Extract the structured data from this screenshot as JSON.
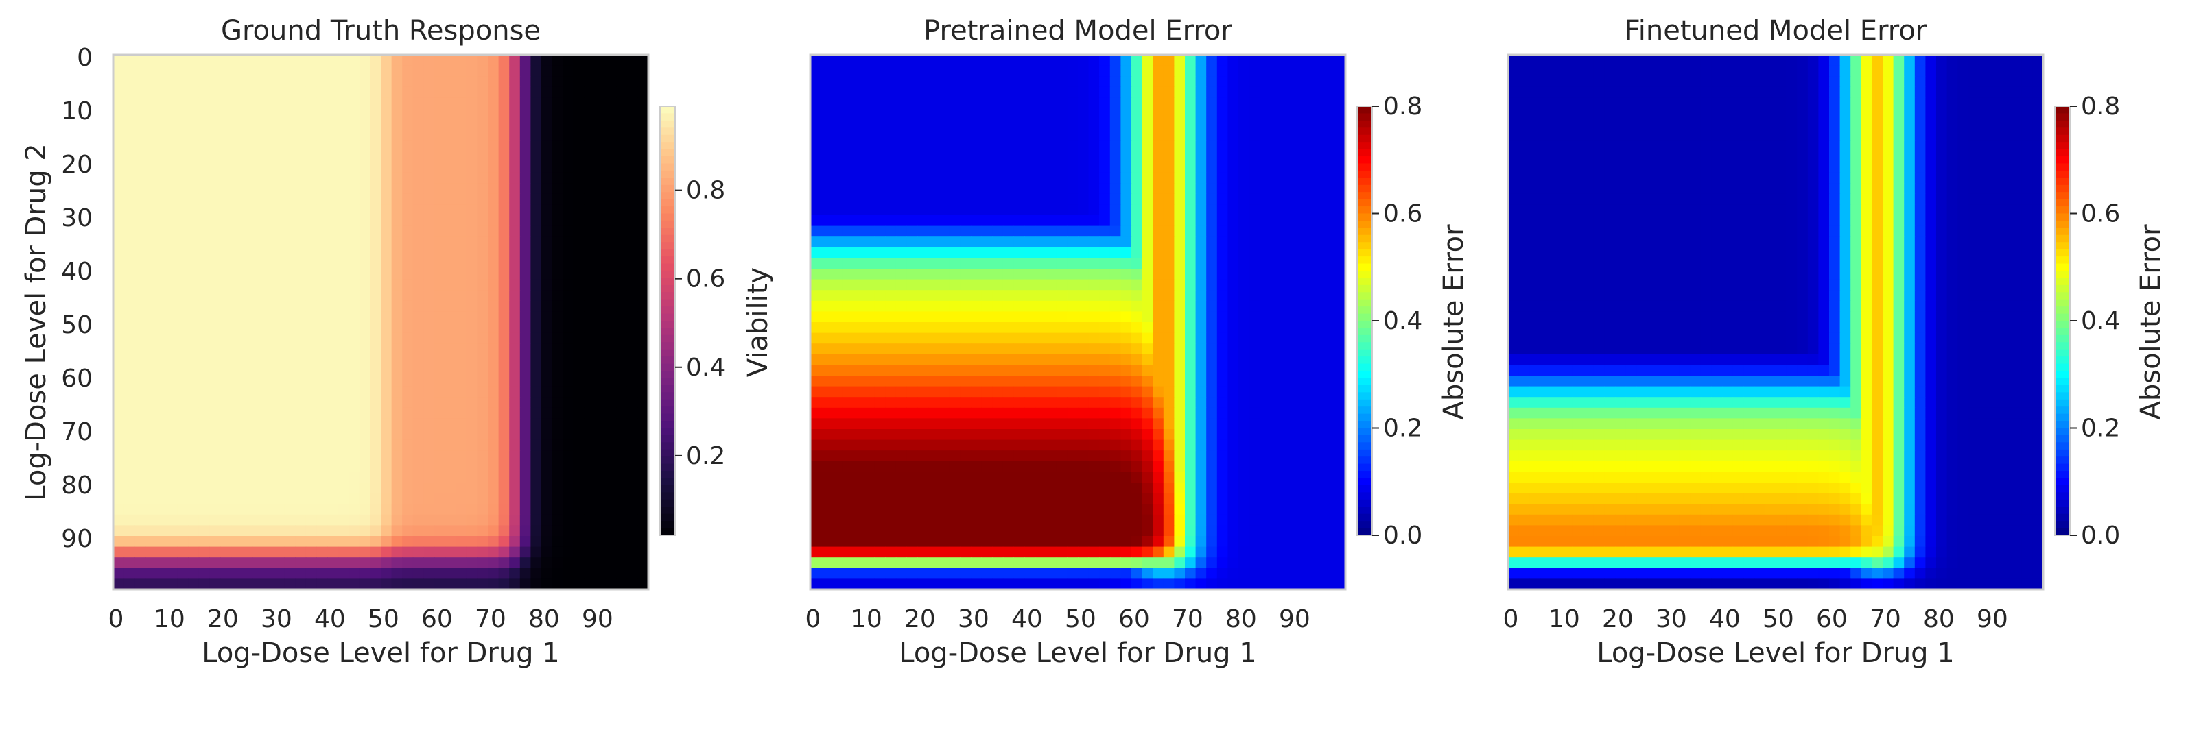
{
  "chart_data": [
    {
      "type": "heatmap",
      "title": "Ground Truth Response",
      "xlabel": "Log-Dose Level for Drug 1",
      "ylabel": "Log-Dose Level for Drug 2",
      "xticks": [
        "0",
        "10",
        "20",
        "30",
        "40",
        "50",
        "60",
        "70",
        "80",
        "90"
      ],
      "yticks": [
        "0",
        "10",
        "20",
        "30",
        "40",
        "50",
        "60",
        "70",
        "80",
        "90"
      ],
      "grid_size": [
        100,
        100
      ],
      "colormap": "magma",
      "colorbar": {
        "label": "Viability",
        "ticks": [
          "0.2",
          "0.4",
          "0.6",
          "0.8"
        ],
        "range": [
          0.0,
          1.0
        ]
      },
      "model": {
        "description_values": "viability ≈ 1.0 for drug1 < 50, ~0.8 at 55-70, drops to ~0 beyond 77; bottom rows (drug2 > 91) fall to ~0.2-0.4",
        "plateau_low": 0.99,
        "plateau_mid": 0.82,
        "cutoff1": 77,
        "cutoff2": 92
      }
    },
    {
      "type": "heatmap",
      "title": "Pretrained Model Error",
      "xlabel": "Log-Dose Level for Drug 1",
      "ylabel": "",
      "xticks": [
        "0",
        "10",
        "20",
        "30",
        "40",
        "50",
        "60",
        "70",
        "80",
        "90"
      ],
      "grid_size": [
        100,
        100
      ],
      "colormap": "jet",
      "colorbar": {
        "label": "Absolute Error",
        "ticks": [
          "0.0",
          "0.2",
          "0.4",
          "0.6",
          "0.8"
        ],
        "range": [
          0.0,
          0.8
        ]
      },
      "model": {
        "top_band_row": 35,
        "corner_max": 0.86,
        "vertical_band_col": 63,
        "base_error": 0.08
      }
    },
    {
      "type": "heatmap",
      "title": "Finetuned Model Error",
      "xlabel": "Log-Dose Level for Drug 1",
      "ylabel": "",
      "xticks": [
        "0",
        "10",
        "20",
        "30",
        "40",
        "50",
        "60",
        "70",
        "80",
        "90"
      ],
      "grid_size": [
        100,
        100
      ],
      "colormap": "jet",
      "colorbar": {
        "label": "Absolute Error",
        "ticks": [
          "0.0",
          "0.2",
          "0.4",
          "0.6",
          "0.8"
        ],
        "range": [
          0.0,
          0.8
        ]
      },
      "model": {
        "top_band_row": 62,
        "corner_max": 0.76,
        "vertical_band_col": 66,
        "base_error": 0.04
      }
    }
  ]
}
